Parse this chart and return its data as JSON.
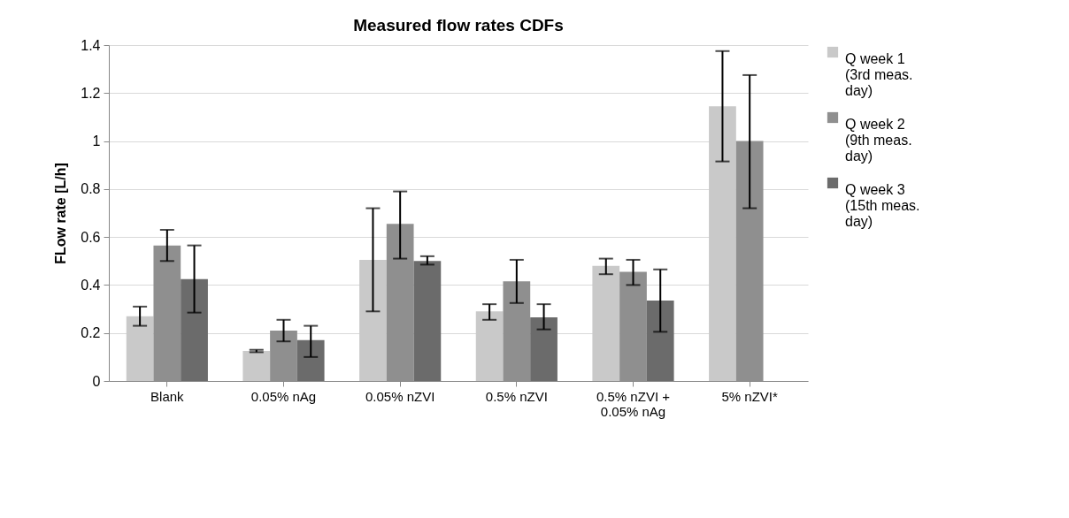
{
  "chart_data": {
    "type": "bar",
    "title": "Measured flow rates CDFs",
    "ylabel": "FLow rate [L/h]",
    "categories": [
      "Blank",
      "0.05% nAg",
      "0.05% nZVI",
      "0.5% nZVI",
      "0.5% nZVI + 0.05% nAg",
      "5% nZVI*"
    ],
    "series": [
      {
        "name": "Q week 1 (3rd meas. day)",
        "color": "#c9c9c9",
        "values": [
          0.27,
          0.125,
          0.505,
          0.29,
          0.48,
          1.145
        ],
        "errors": [
          [
            0.23,
            0.31
          ],
          [
            0.12,
            0.13
          ],
          [
            0.29,
            0.72
          ],
          [
            0.255,
            0.32
          ],
          [
            0.445,
            0.51
          ],
          [
            0.915,
            1.375
          ]
        ]
      },
      {
        "name": "Q week 2 (9th meas. day)",
        "color": "#8f8f8f",
        "values": [
          0.565,
          0.21,
          0.655,
          0.415,
          0.455,
          1.0
        ],
        "errors": [
          [
            0.5,
            0.63
          ],
          [
            0.165,
            0.255
          ],
          [
            0.51,
            0.79
          ],
          [
            0.325,
            0.505
          ],
          [
            0.4,
            0.505
          ],
          [
            0.72,
            1.275
          ]
        ]
      },
      {
        "name": "Q week 3 (15th meas. day)",
        "color": "#6b6b6b",
        "values": [
          0.425,
          0.17,
          0.5,
          0.265,
          0.335,
          null
        ],
        "errors": [
          [
            0.285,
            0.565
          ],
          [
            0.1,
            0.23
          ],
          [
            0.485,
            0.52
          ],
          [
            0.215,
            0.32
          ],
          [
            0.205,
            0.465
          ],
          null
        ]
      }
    ],
    "ylim": [
      0,
      1.4
    ],
    "yticks": [
      0,
      0.2,
      0.4,
      0.6,
      0.8,
      1,
      1.2,
      1.4
    ],
    "grid": "y",
    "legend": "right"
  }
}
